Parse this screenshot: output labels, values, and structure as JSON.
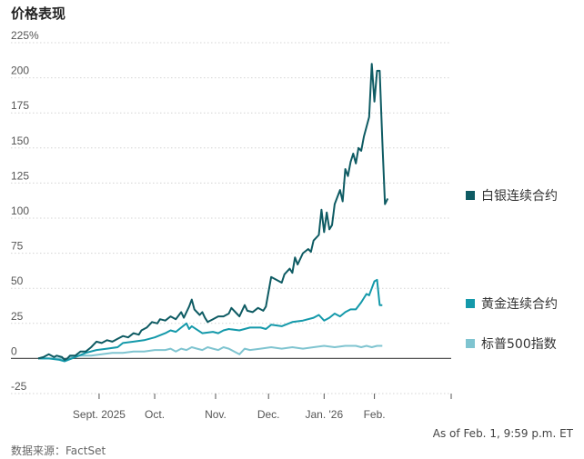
{
  "header": {
    "title": "价格表现"
  },
  "footer": {
    "source": "数据来源：FactSet",
    "as_of": "As of Feb. 1, 9:59 p.m. ET"
  },
  "chart_data": {
    "type": "line",
    "title": "价格表现",
    "ylabel": "%",
    "ylim": [
      -25,
      225
    ],
    "yticks": [
      225,
      200,
      175,
      150,
      125,
      100,
      75,
      50,
      25,
      0,
      -25
    ],
    "ytick_labels": [
      "225%",
      "200",
      "175",
      "150",
      "125",
      "100",
      "75",
      "50",
      "25",
      "0",
      "-25"
    ],
    "xlim": [
      0,
      156
    ],
    "xticks": [
      {
        "x": 23,
        "label": "Sept. 2025"
      },
      {
        "x": 44,
        "label": "Oct."
      },
      {
        "x": 67,
        "label": "Nov."
      },
      {
        "x": 87,
        "label": "Dec."
      },
      {
        "x": 108,
        "label": "Jan. '26"
      },
      {
        "x": 127,
        "label": "Feb."
      }
    ],
    "series": [
      {
        "name": "白银连续合约",
        "color": "#0e5b63",
        "points": [
          [
            0,
            0
          ],
          [
            2,
            1
          ],
          [
            4,
            3
          ],
          [
            6,
            1
          ],
          [
            7,
            2
          ],
          [
            9,
            1
          ],
          [
            10,
            -1
          ],
          [
            11,
            0
          ],
          [
            12,
            2
          ],
          [
            14,
            2
          ],
          [
            16,
            5
          ],
          [
            18,
            5
          ],
          [
            20,
            8
          ],
          [
            22,
            12
          ],
          [
            24,
            11
          ],
          [
            26,
            13
          ],
          [
            28,
            12
          ],
          [
            30,
            14
          ],
          [
            32,
            16
          ],
          [
            34,
            15
          ],
          [
            36,
            18
          ],
          [
            38,
            17
          ],
          [
            39,
            20
          ],
          [
            41,
            22
          ],
          [
            43,
            26
          ],
          [
            45,
            25
          ],
          [
            46,
            28
          ],
          [
            48,
            27
          ],
          [
            50,
            30
          ],
          [
            52,
            28
          ],
          [
            54,
            33
          ],
          [
            55,
            29
          ],
          [
            57,
            37
          ],
          [
            58,
            42
          ],
          [
            59,
            35
          ],
          [
            61,
            31
          ],
          [
            62,
            33
          ],
          [
            63,
            29
          ],
          [
            64,
            26
          ],
          [
            66,
            28
          ],
          [
            68,
            30
          ],
          [
            70,
            30
          ],
          [
            72,
            32
          ],
          [
            73,
            36
          ],
          [
            75,
            32
          ],
          [
            76,
            30
          ],
          [
            78,
            38
          ],
          [
            79,
            34
          ],
          [
            81,
            33
          ],
          [
            83,
            36
          ],
          [
            85,
            34
          ],
          [
            86,
            37
          ],
          [
            88,
            58
          ],
          [
            90,
            56
          ],
          [
            92,
            54
          ],
          [
            93,
            60
          ],
          [
            95,
            64
          ],
          [
            96,
            61
          ],
          [
            97,
            72
          ],
          [
            98,
            67
          ],
          [
            100,
            75
          ],
          [
            102,
            78
          ],
          [
            103,
            76
          ],
          [
            104,
            84
          ],
          [
            106,
            88
          ],
          [
            107,
            106
          ],
          [
            108,
            90
          ],
          [
            109,
            104
          ],
          [
            110,
            92
          ],
          [
            111,
            95
          ],
          [
            112,
            110
          ],
          [
            114,
            120
          ],
          [
            115,
            112
          ],
          [
            116,
            135
          ],
          [
            117,
            130
          ],
          [
            118,
            140
          ],
          [
            119,
            146
          ],
          [
            120,
            139
          ],
          [
            121,
            150
          ],
          [
            122,
            148
          ],
          [
            123,
            158
          ],
          [
            124,
            165
          ],
          [
            125,
            172
          ],
          [
            126,
            210
          ],
          [
            127,
            183
          ],
          [
            128,
            205
          ],
          [
            129,
            205
          ],
          [
            130,
            155
          ],
          [
            131,
            110
          ],
          [
            132,
            114
          ]
        ]
      },
      {
        "name": "黄金连续合约",
        "color": "#1499aa",
        "points": [
          [
            0,
            0
          ],
          [
            4,
            0
          ],
          [
            8,
            -1
          ],
          [
            10,
            -2
          ],
          [
            14,
            1
          ],
          [
            18,
            4
          ],
          [
            22,
            6
          ],
          [
            26,
            7
          ],
          [
            30,
            8
          ],
          [
            32,
            11
          ],
          [
            36,
            12
          ],
          [
            40,
            13
          ],
          [
            44,
            15
          ],
          [
            48,
            18
          ],
          [
            50,
            20
          ],
          [
            52,
            19
          ],
          [
            54,
            22
          ],
          [
            56,
            25
          ],
          [
            57,
            21
          ],
          [
            58,
            23
          ],
          [
            62,
            18
          ],
          [
            66,
            19
          ],
          [
            68,
            18
          ],
          [
            70,
            20
          ],
          [
            72,
            21
          ],
          [
            76,
            20
          ],
          [
            80,
            22
          ],
          [
            84,
            22
          ],
          [
            86,
            21
          ],
          [
            88,
            24
          ],
          [
            92,
            23
          ],
          [
            96,
            26
          ],
          [
            100,
            27
          ],
          [
            104,
            29
          ],
          [
            106,
            31
          ],
          [
            108,
            27
          ],
          [
            110,
            29
          ],
          [
            112,
            32
          ],
          [
            114,
            30
          ],
          [
            116,
            33
          ],
          [
            118,
            35
          ],
          [
            120,
            35
          ],
          [
            122,
            40
          ],
          [
            124,
            46
          ],
          [
            125,
            45
          ],
          [
            126,
            50
          ],
          [
            127,
            55
          ],
          [
            128,
            56
          ],
          [
            129,
            38
          ],
          [
            130,
            38
          ]
        ]
      },
      {
        "name": "标普500指数",
        "color": "#7fc4d0",
        "points": [
          [
            0,
            0
          ],
          [
            4,
            0
          ],
          [
            8,
            0
          ],
          [
            10,
            -1
          ],
          [
            12,
            1
          ],
          [
            16,
            2
          ],
          [
            20,
            2
          ],
          [
            24,
            3
          ],
          [
            28,
            4
          ],
          [
            32,
            4
          ],
          [
            36,
            5
          ],
          [
            40,
            5
          ],
          [
            44,
            6
          ],
          [
            48,
            6
          ],
          [
            50,
            7
          ],
          [
            52,
            5
          ],
          [
            54,
            7
          ],
          [
            56,
            6
          ],
          [
            58,
            8
          ],
          [
            60,
            7
          ],
          [
            62,
            6
          ],
          [
            64,
            8
          ],
          [
            66,
            7
          ],
          [
            68,
            6
          ],
          [
            70,
            8
          ],
          [
            72,
            7
          ],
          [
            74,
            5
          ],
          [
            76,
            3
          ],
          [
            78,
            7
          ],
          [
            80,
            6
          ],
          [
            84,
            7
          ],
          [
            88,
            8
          ],
          [
            92,
            7
          ],
          [
            96,
            8
          ],
          [
            100,
            7
          ],
          [
            104,
            8
          ],
          [
            108,
            9
          ],
          [
            112,
            8
          ],
          [
            116,
            9
          ],
          [
            120,
            9
          ],
          [
            122,
            8
          ],
          [
            124,
            9
          ],
          [
            126,
            8
          ],
          [
            128,
            9
          ],
          [
            130,
            9
          ]
        ]
      }
    ],
    "legend": [
      {
        "name": "白银连续合约",
        "color": "#0e5b63"
      },
      {
        "name": "黄金连续合约",
        "color": "#1499aa"
      },
      {
        "name": "标普500指数",
        "color": "#7fc4d0"
      }
    ]
  }
}
